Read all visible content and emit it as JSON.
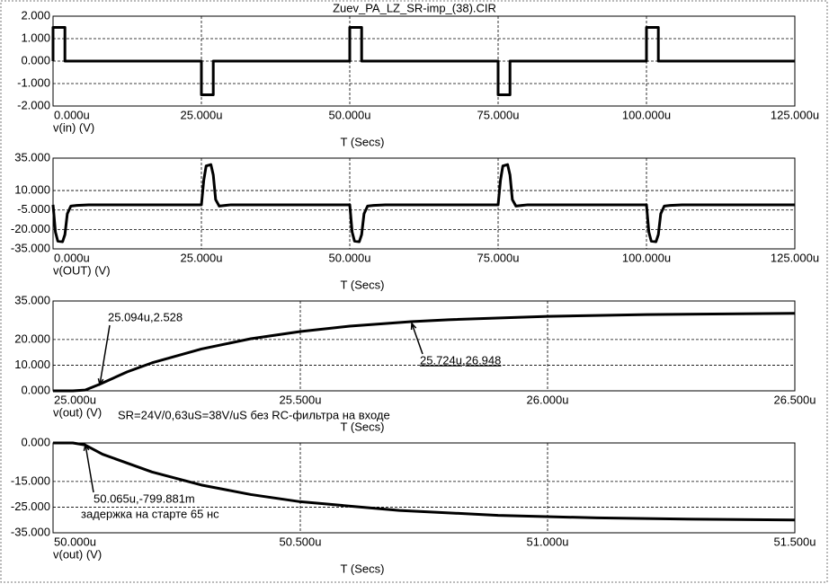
{
  "chart_data": [
    {
      "type": "line",
      "title": "Zuev_PA_LZ_SR-imp_(38).CIR",
      "xlabel": "T (Secs)",
      "grid": true,
      "xlim": [
        0,
        125
      ],
      "xticks": [
        {
          "value": 0,
          "label": "0.000u"
        },
        {
          "value": 25,
          "label": "25.000u"
        },
        {
          "value": 50,
          "label": "50.000u"
        },
        {
          "value": 75,
          "label": "75.000u"
        },
        {
          "value": 100,
          "label": "100.000u"
        },
        {
          "value": 125,
          "label": "125.000u"
        }
      ],
      "ylim": [
        -2,
        2
      ],
      "yticks": [
        {
          "value": 2,
          "label": "2.000"
        },
        {
          "value": 1,
          "label": "1.000"
        },
        {
          "value": 0,
          "label": "0.000"
        },
        {
          "value": -1,
          "label": "-1.000"
        },
        {
          "value": -2,
          "label": "-2.000"
        }
      ],
      "x": [
        0,
        0,
        2,
        2,
        25,
        25,
        27,
        27,
        50,
        50,
        52,
        52,
        75,
        75,
        77,
        77,
        100,
        100,
        102,
        102,
        125
      ],
      "series": [
        {
          "name": "v(in) (V)",
          "color": "#000000",
          "values": [
            0,
            1.5,
            1.5,
            0,
            0,
            -1.5,
            -1.5,
            0,
            0,
            1.5,
            1.5,
            0,
            0,
            -1.5,
            -1.5,
            0,
            0,
            1.5,
            1.5,
            0,
            0
          ]
        }
      ]
    },
    {
      "type": "line",
      "xlabel": "T (Secs)",
      "grid": true,
      "xlim": [
        0,
        125
      ],
      "xticks": [
        {
          "value": 0,
          "label": "0.000u"
        },
        {
          "value": 25,
          "label": "25.000u"
        },
        {
          "value": 50,
          "label": "50.000u"
        },
        {
          "value": 75,
          "label": "75.000u"
        },
        {
          "value": 100,
          "label": "100.000u"
        },
        {
          "value": 125,
          "label": "125.000u"
        }
      ],
      "ylim": [
        -35,
        35
      ],
      "yticks": [
        {
          "value": 35,
          "label": "35.000"
        },
        {
          "value": 10,
          "label": "10.000"
        },
        {
          "value": -5,
          "label": "-5.000"
        },
        {
          "value": -20,
          "label": "-20.000"
        },
        {
          "value": -35,
          "label": "-35.000"
        }
      ],
      "x": [
        0,
        0.4,
        0.8,
        1.6,
        2,
        2.4,
        3,
        4,
        6,
        25,
        25.4,
        25.8,
        26.6,
        27,
        27.4,
        28,
        29,
        30,
        50,
        50.4,
        50.8,
        51.6,
        52,
        52.4,
        53,
        54,
        56,
        75,
        75.4,
        75.8,
        76.6,
        77,
        77.4,
        78,
        79,
        80,
        100,
        100.4,
        100.8,
        101.6,
        102,
        102.4,
        103,
        104,
        106,
        125
      ],
      "series": [
        {
          "name": "v(OUT) (V)",
          "color": "#000000",
          "values": [
            -1,
            -22,
            -29,
            -29.5,
            -24,
            -8,
            -2,
            -1.5,
            -1,
            -1,
            18,
            29,
            30,
            22,
            3,
            -2,
            -1.5,
            -1,
            -1,
            -22,
            -29,
            -29.5,
            -24,
            -8,
            -2,
            -1.5,
            -1,
            -1,
            18,
            29,
            30,
            22,
            3,
            -2,
            -1.5,
            -1,
            -1,
            -22,
            -29,
            -29.5,
            -24,
            -8,
            -2,
            -1.5,
            -1,
            -1
          ]
        }
      ]
    },
    {
      "type": "line",
      "xlabel": "T (Secs)",
      "subtitle": "SR=24V/0,63uS=38V/uS без RC-фильтра на входе",
      "grid": true,
      "xlim": [
        25,
        26.5
      ],
      "xticks": [
        {
          "value": 25,
          "label": "25.000u"
        },
        {
          "value": 25.5,
          "label": "25.500u"
        },
        {
          "value": 26,
          "label": "26.000u"
        },
        {
          "value": 26.5,
          "label": "26.500u"
        }
      ],
      "ylim": [
        0,
        35
      ],
      "yticks": [
        {
          "value": 35,
          "label": "35.000"
        },
        {
          "value": 20,
          "label": "20.000"
        },
        {
          "value": 10,
          "label": "10.000"
        },
        {
          "value": 0,
          "label": "0.000"
        }
      ],
      "x": [
        25,
        25.04,
        25.065,
        25.094,
        25.15,
        25.2,
        25.3,
        25.4,
        25.5,
        25.6,
        25.724,
        25.8,
        26,
        26.2,
        26.5
      ],
      "series": [
        {
          "name": "v(out) (V)",
          "color": "#000000",
          "values": [
            0,
            0,
            0.3,
            2.528,
            7.4,
            10.9,
            16.3,
            20.3,
            23.1,
            25.2,
            26.948,
            27.7,
            29,
            29.7,
            30.2
          ]
        }
      ],
      "annotations": [
        {
          "text": "25.094u,2.528",
          "color": "#1f1f7a"
        },
        {
          "text": "25.724u,26.948",
          "color": "#1f1f7a"
        }
      ]
    },
    {
      "type": "line",
      "xlabel": "T (Secs)",
      "grid": true,
      "xlim": [
        50,
        51.5
      ],
      "xticks": [
        {
          "value": 50,
          "label": "50.000u"
        },
        {
          "value": 50.5,
          "label": "50.500u"
        },
        {
          "value": 51,
          "label": "51.000u"
        },
        {
          "value": 51.5,
          "label": "51.500u"
        }
      ],
      "ylim": [
        -35,
        0
      ],
      "yticks": [
        {
          "value": 0,
          "label": "0.000"
        },
        {
          "value": -15,
          "label": "-15.000"
        },
        {
          "value": -25,
          "label": "-25.000"
        },
        {
          "value": -35,
          "label": "-35.000"
        }
      ],
      "x": [
        50,
        50.04,
        50.065,
        50.1,
        50.2,
        50.3,
        50.4,
        50.5,
        50.7,
        50.9,
        51.1,
        51.3,
        51.5
      ],
      "series": [
        {
          "name": "v(out) (V)",
          "color": "#000000",
          "values": [
            0,
            0,
            -0.799881,
            -4.4,
            -11.3,
            -16.4,
            -20.1,
            -22.9,
            -26.3,
            -28.2,
            -29.2,
            -29.7,
            -30
          ]
        }
      ],
      "annotations": [
        {
          "text": "50.065u,-799.881m",
          "color": "#1f1f7a"
        },
        {
          "text": "задержка на старте 65 нс",
          "color": "#e00000"
        }
      ]
    }
  ]
}
